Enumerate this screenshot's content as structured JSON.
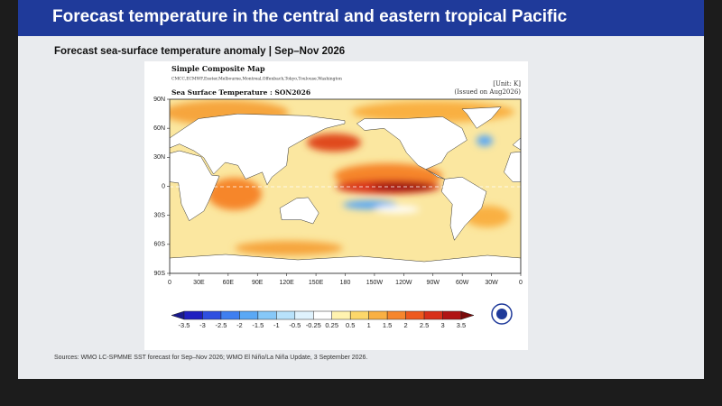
{
  "header": {
    "title": "Forecast temperature in the central and eastern tropical Pacific"
  },
  "slide": {
    "subtitle": "Forecast sea-surface temperature anomaly | Sep–Nov 2026"
  },
  "map": {
    "title": "Simple Composite Map",
    "models": "CMCC,ECMWF,Exeter,Melbourne,Montreal,Offenbach,Tokyo,Toulouse,Washington",
    "unit": "[Unit: K]",
    "issued": "(Issued on Aug2026)",
    "panel_title": "Sea Surface Temperature : SON2026",
    "lat_labels": [
      "90N",
      "60N",
      "30N",
      "0",
      "30S",
      "60S",
      "90S"
    ],
    "lon_labels": [
      "0",
      "30E",
      "60E",
      "90E",
      "120E",
      "150E",
      "180",
      "150W",
      "120W",
      "90W",
      "60W",
      "30W",
      "0"
    ]
  },
  "colorbar": {
    "labels": [
      -3.5,
      -3,
      -2.5,
      -2,
      -1.5,
      -1,
      -0.5,
      -0.25,
      0.25,
      0.5,
      1,
      1.5,
      2,
      2.5,
      3,
      3.5
    ],
    "colors": [
      "#1a1a8c",
      "#2020c0",
      "#2f4fe0",
      "#3f7ff0",
      "#5aa8f5",
      "#86c8f8",
      "#b8e2fb",
      "#dff2fd",
      "#ffffff",
      "#fff3b0",
      "#fcd76a",
      "#f9b043",
      "#f6862c",
      "#ee5a1e",
      "#d8301a",
      "#b01414",
      "#7a0a0a"
    ]
  },
  "footer": {
    "source": "Sources: WMO LC-SPMME SST forecast for Sep–Nov 2026; WMO El Niño/La Niña Update, 3 September 2026."
  }
}
